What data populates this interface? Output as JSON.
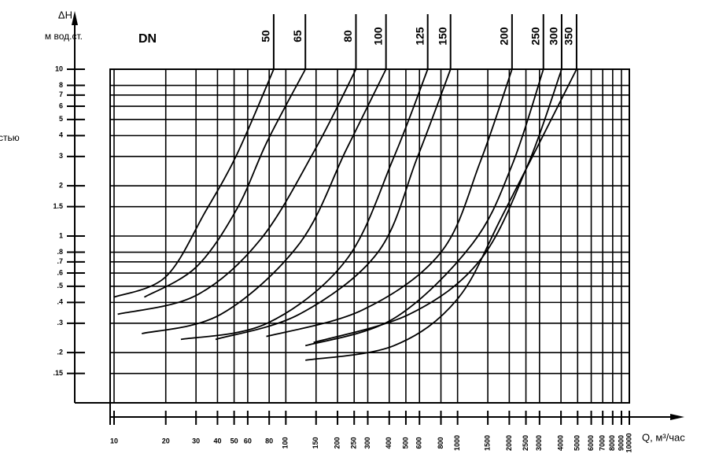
{
  "chart_data": {
    "type": "line",
    "ylabel": "ΔН",
    "ylabel_units": "м вод.ст.",
    "xlabel": "Q, м³/час",
    "legend_title": "DN",
    "annotation": "стью",
    "xscale": "log",
    "yscale": "log",
    "grid": true,
    "xlim": [
      10,
      10000
    ],
    "ylim": [
      0.1,
      10
    ],
    "xticks": [
      10,
      20,
      30,
      40,
      50,
      60,
      80,
      100,
      150,
      200,
      250,
      300,
      400,
      500,
      600,
      800,
      1000,
      1500,
      2000,
      2500,
      3000,
      4000,
      5000,
      6000,
      7000,
      8000,
      9000,
      10000
    ],
    "yticks": [
      10,
      8,
      7,
      6,
      5,
      4,
      3,
      2,
      1.5,
      1,
      {
        "value": 0.8,
        "label": ".8"
      },
      {
        "value": 0.7,
        "label": ".7"
      },
      {
        "value": 0.6,
        "label": ".6"
      },
      {
        "value": 0.5,
        "label": ".5"
      },
      {
        "value": 0.4,
        "label": ".4"
      },
      {
        "value": 0.3,
        "label": ".3"
      },
      {
        "value": 0.2,
        "label": ".2"
      },
      {
        "value": 0.15,
        "label": ".15"
      }
    ],
    "series": [
      {
        "name": "50",
        "color": "#000000",
        "x": [
          10,
          20,
          34,
          52,
          85
        ],
        "values": [
          0.43,
          0.57,
          1.4,
          3.1,
          10
        ]
      },
      {
        "name": "65",
        "color": "#000000",
        "x": [
          15,
          30,
          52,
          78,
          130
        ],
        "values": [
          0.43,
          0.65,
          1.46,
          3.7,
          10
        ]
      },
      {
        "name": "80",
        "color": "#000000",
        "x": [
          10.5,
          30,
          71,
          148,
          256
        ],
        "values": [
          0.34,
          0.44,
          0.95,
          3.3,
          10
        ]
      },
      {
        "name": "100",
        "color": "#000000",
        "x": [
          14.5,
          42,
          120,
          225,
          383
        ],
        "values": [
          0.26,
          0.34,
          0.9,
          3.3,
          10
        ]
      },
      {
        "name": "125",
        "color": "#000000",
        "x": [
          24.5,
          78,
          225,
          425,
          670
        ],
        "values": [
          0.24,
          0.3,
          0.72,
          2.96,
          10
        ]
      },
      {
        "name": "150",
        "color": "#000000",
        "x": [
          39,
          120,
          344,
          583,
          910
        ],
        "values": [
          0.24,
          0.34,
          0.8,
          2.96,
          10
        ]
      },
      {
        "name": "200",
        "color": "#000000",
        "x": [
          77,
          279,
          801,
          1358,
          2075
        ],
        "values": [
          0.25,
          0.36,
          0.8,
          2.8,
          10
        ]
      },
      {
        "name": "250",
        "color": "#000000",
        "x": [
          130,
          425,
          1221,
          2075,
          3160
        ],
        "values": [
          0.22,
          0.32,
          0.9,
          2.66,
          10
        ]
      },
      {
        "name": "300",
        "color": "#000000",
        "x": [
          145,
          525,
          1358,
          2560,
          4035
        ],
        "values": [
          0.23,
          0.34,
          0.72,
          2.66,
          10
        ]
      },
      {
        "name": "350",
        "color": "#000000",
        "x": [
          130,
          425,
          1000,
          1866,
          4930
        ],
        "values": [
          0.18,
          0.22,
          0.42,
          1.39,
          10
        ]
      }
    ]
  }
}
